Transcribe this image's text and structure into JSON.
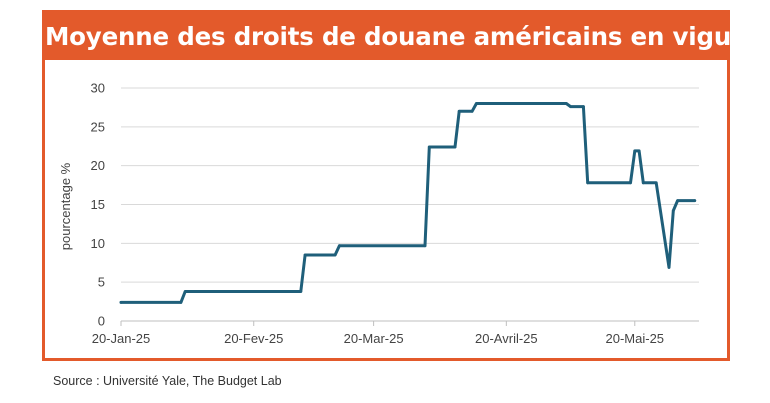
{
  "title": "Moyenne des droits de douane américains en vigueur",
  "source": "Source : Université Yale, The Budget Lab",
  "colors": {
    "accent": "#e35a2b",
    "line": "#1f5f7a",
    "grid": "#d9d9d9",
    "axis": "#bfbfbf"
  },
  "chart_data": {
    "type": "line",
    "title": "Moyenne des droits de douane américains en vigueur",
    "xlabel": "",
    "ylabel": "pourcentage %",
    "ylim": [
      0,
      30
    ],
    "yticks": [
      0,
      5,
      10,
      15,
      20,
      25,
      30
    ],
    "xlim": [
      "2025-01-20",
      "2025-06-04"
    ],
    "xticks": [
      {
        "date": "2025-01-20",
        "label": "20-Jan-25"
      },
      {
        "date": "2025-02-20",
        "label": "20-Fev-25"
      },
      {
        "date": "2025-03-20",
        "label": "20-Mar-25"
      },
      {
        "date": "2025-04-20",
        "label": "20-Avril-25"
      },
      {
        "date": "2025-05-20",
        "label": "20-Mai-25"
      }
    ],
    "grid": true,
    "legend": "none",
    "series": [
      {
        "points": [
          {
            "x": "2025-01-20",
            "y": 2.4
          },
          {
            "x": "2025-02-03",
            "y": 2.4
          },
          {
            "x": "2025-02-04",
            "y": 3.8
          },
          {
            "x": "2025-03-03",
            "y": 3.8
          },
          {
            "x": "2025-03-04",
            "y": 8.5
          },
          {
            "x": "2025-03-11",
            "y": 8.5
          },
          {
            "x": "2025-03-12",
            "y": 9.7
          },
          {
            "x": "2025-04-01",
            "y": 9.7
          },
          {
            "x": "2025-04-02",
            "y": 22.4
          },
          {
            "x": "2025-04-08",
            "y": 22.4
          },
          {
            "x": "2025-04-09",
            "y": 27.0
          },
          {
            "x": "2025-04-12",
            "y": 27.0
          },
          {
            "x": "2025-04-13",
            "y": 28.0
          },
          {
            "x": "2025-05-04",
            "y": 28.0
          },
          {
            "x": "2025-05-05",
            "y": 27.6
          },
          {
            "x": "2025-05-08",
            "y": 27.6
          },
          {
            "x": "2025-05-09",
            "y": 17.8
          },
          {
            "x": "2025-05-19",
            "y": 17.8
          },
          {
            "x": "2025-05-20",
            "y": 21.9
          },
          {
            "x": "2025-05-21",
            "y": 21.9
          },
          {
            "x": "2025-05-22",
            "y": 17.8
          },
          {
            "x": "2025-05-25",
            "y": 17.8
          },
          {
            "x": "2025-05-28",
            "y": 6.9
          },
          {
            "x": "2025-05-29",
            "y": 14.2
          },
          {
            "x": "2025-05-30",
            "y": 15.5
          },
          {
            "x": "2025-06-03",
            "y": 15.5
          }
        ]
      }
    ]
  }
}
